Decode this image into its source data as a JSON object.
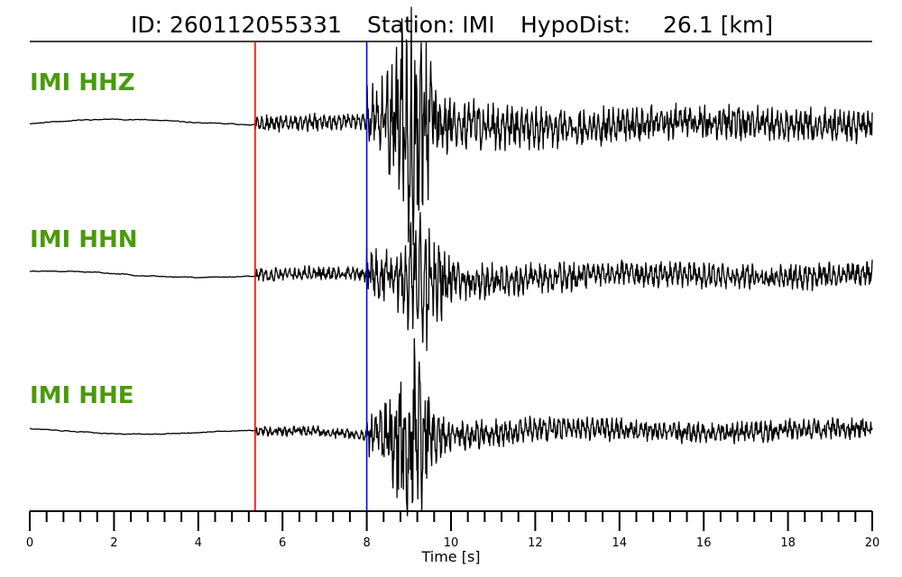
{
  "header": {
    "id_label": "ID: 260112055331",
    "station_label": "Station: IMI",
    "hypodist_label": "HypoDist:",
    "hypodist_value": "26.1 [km]"
  },
  "colors": {
    "label_green": "#4a9a0a",
    "p_pick": "#ff0000",
    "s_pick": "#0000ff",
    "trace": "#000000"
  },
  "chart_data": {
    "type": "line",
    "title": "ID: 260112055331   Station: IMI   HypoDist:    26.1 [km]",
    "xlabel": "Time [s]",
    "xlim": [
      0,
      20
    ],
    "major_ticks": [
      0,
      2,
      4,
      6,
      8,
      10,
      12,
      14,
      16,
      18,
      20
    ],
    "minor_tick_step": 0.4,
    "picks": [
      {
        "name": "P",
        "time": 5.35,
        "color": "#ff0000"
      },
      {
        "name": "S",
        "time": 8.0,
        "color": "#0000ff"
      }
    ],
    "series": [
      {
        "name": "IMI HHZ",
        "p_amp": 0.08,
        "s_amp": 0.16,
        "peak_time": 9.1,
        "peak_amp": 0.95,
        "coda_amp": 0.05,
        "seed": 11
      },
      {
        "name": "IMI HHN",
        "p_amp": 0.07,
        "s_amp": 0.12,
        "peak_time": 9.3,
        "peak_amp": 0.55,
        "coda_amp": 0.05,
        "seed": 23
      },
      {
        "name": "IMI HHE",
        "p_amp": 0.05,
        "s_amp": 0.1,
        "peak_time": 9.05,
        "peak_amp": 0.75,
        "coda_amp": 0.03,
        "seed": 37
      }
    ]
  }
}
